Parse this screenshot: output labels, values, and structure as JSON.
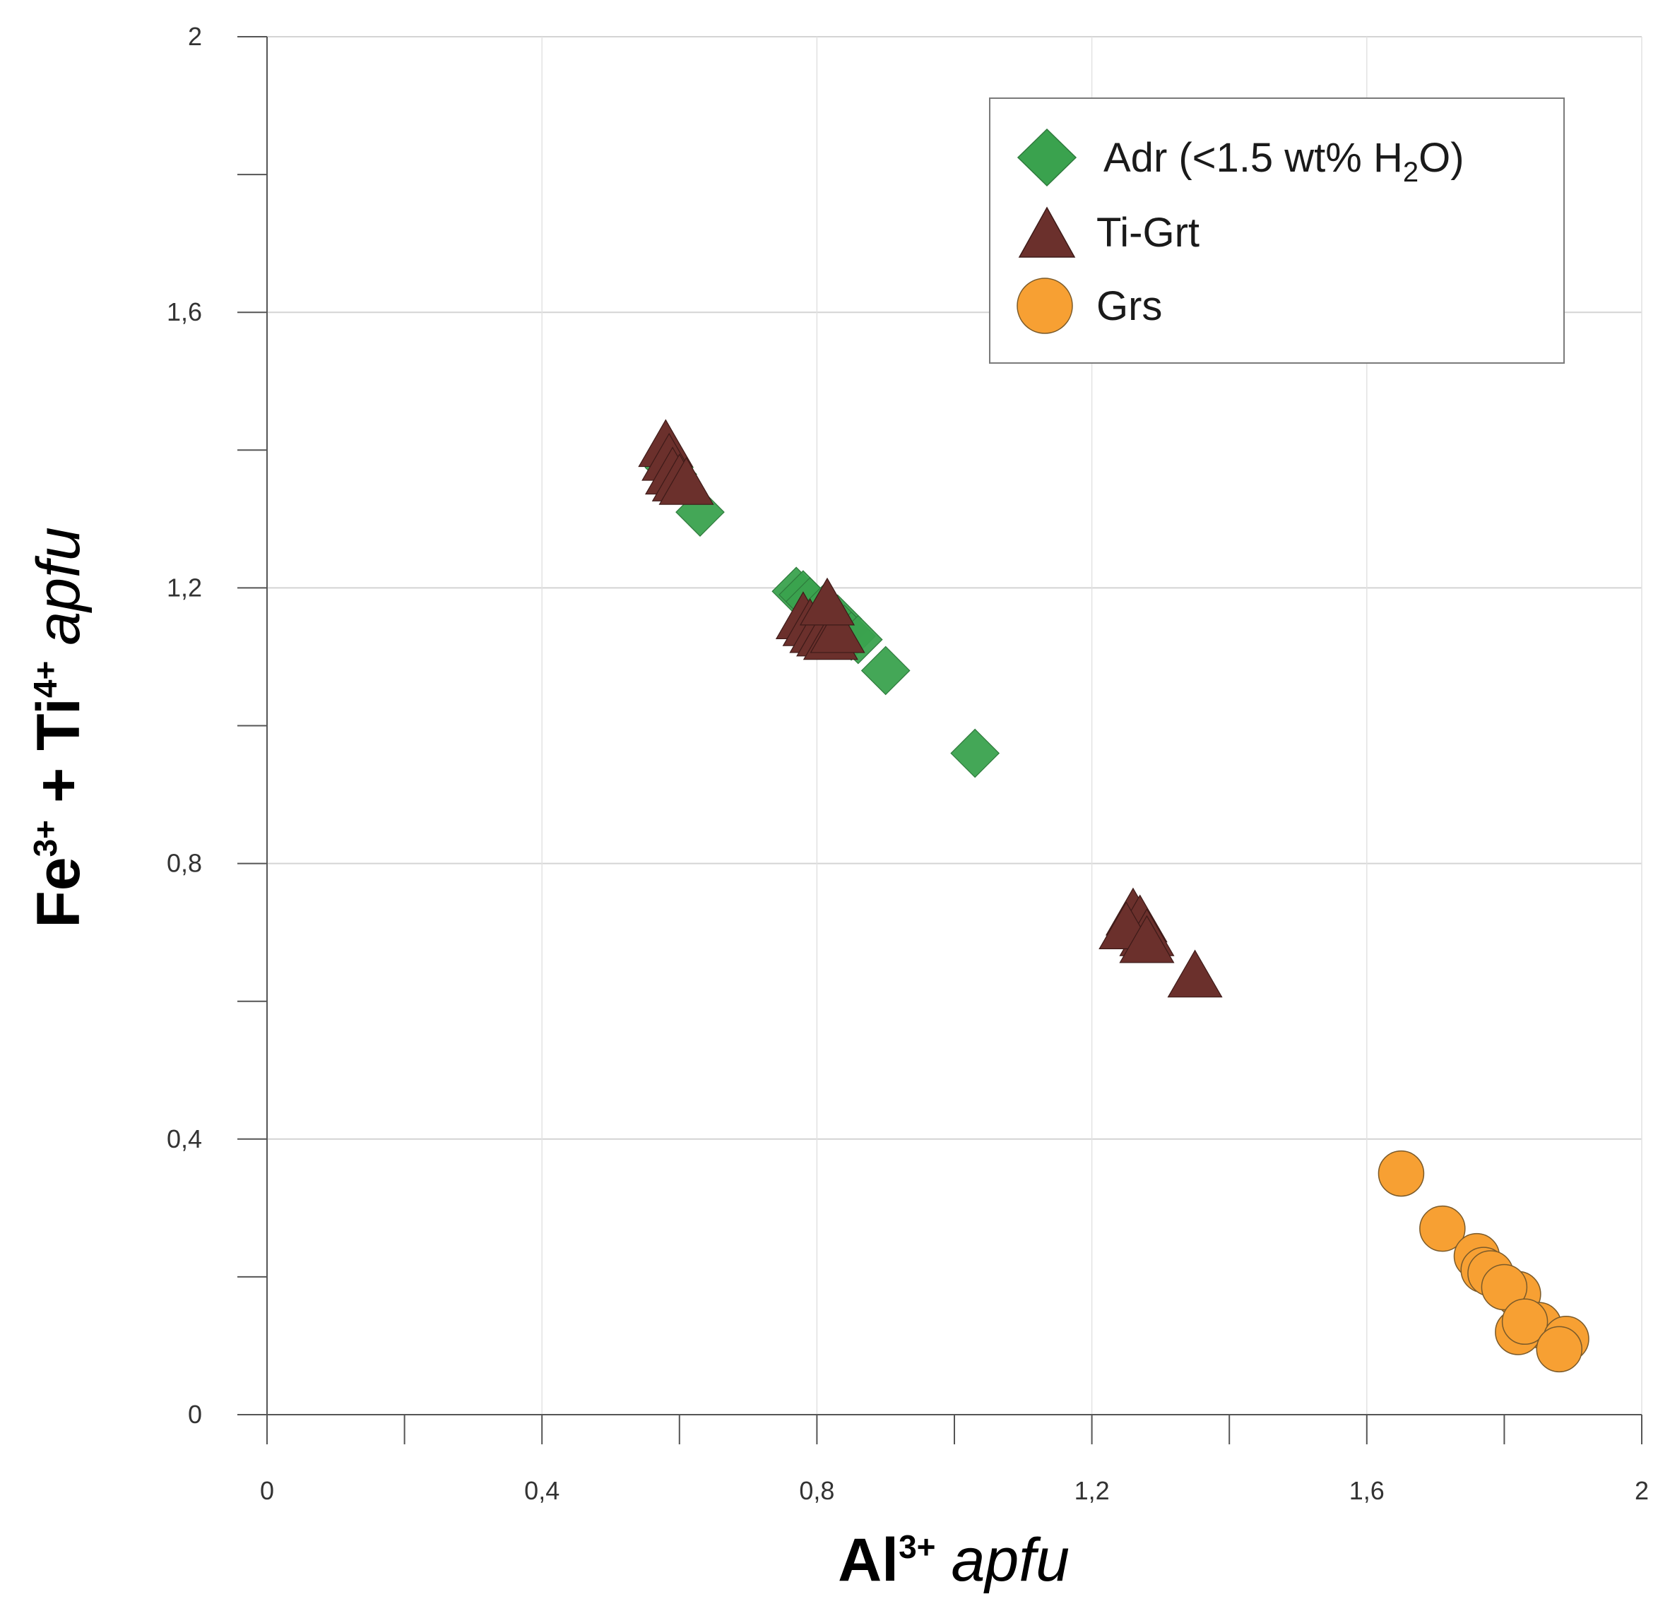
{
  "chart_data": {
    "type": "scatter",
    "xlabel": {
      "main": "Al",
      "sup": "3+",
      "unit": "apfu"
    },
    "ylabel": {
      "main": "Fe",
      "sup1": "3+",
      "plus": " + Ti",
      "sup2": "4+",
      "unit": "apfu"
    },
    "xlim": [
      0,
      2
    ],
    "ylim": [
      0,
      2
    ],
    "x_major_ticks": [
      0,
      0.4,
      0.8,
      1.2,
      1.6,
      2
    ],
    "x_tick_labels": [
      "0",
      "0,4",
      "0,8",
      "1,2",
      "1,6",
      "2"
    ],
    "x_minor_ticks": [
      0.2,
      0.6,
      1.0,
      1.4,
      1.8
    ],
    "y_major_ticks": [
      0,
      0.4,
      0.8,
      1.2,
      1.6,
      2
    ],
    "y_tick_labels": [
      "0",
      "0,4",
      "0,8",
      "1,2",
      "1,6",
      "2"
    ],
    "y_minor_ticks": [
      0.2,
      0.6,
      1.0,
      1.4,
      1.8
    ],
    "grid": true,
    "legend_position": "top-right",
    "series": [
      {
        "name": "Adr (<1.5 wt% H2O)",
        "label_main": "Adr (<1.5 wt% H",
        "label_sub": "2",
        "label_tail": "O)",
        "marker": "diamond",
        "color": "#3aa24e",
        "points": [
          [
            0.585,
            1.375
          ],
          [
            0.59,
            1.365
          ],
          [
            0.63,
            1.31
          ],
          [
            0.77,
            1.195
          ],
          [
            0.78,
            1.19
          ],
          [
            0.79,
            1.18
          ],
          [
            0.81,
            1.17
          ],
          [
            0.82,
            1.16
          ],
          [
            0.83,
            1.155
          ],
          [
            0.84,
            1.14
          ],
          [
            0.85,
            1.13
          ],
          [
            0.86,
            1.125
          ],
          [
            0.9,
            1.08
          ],
          [
            1.03,
            0.96
          ]
        ]
      },
      {
        "name": "Ti-Grt",
        "label_main": "Ti-Grt",
        "marker": "triangle",
        "color": "#6b302c",
        "points": [
          [
            0.58,
            1.41
          ],
          [
            0.585,
            1.39
          ],
          [
            0.59,
            1.37
          ],
          [
            0.6,
            1.36
          ],
          [
            0.61,
            1.355
          ],
          [
            0.78,
            1.16
          ],
          [
            0.79,
            1.15
          ],
          [
            0.8,
            1.14
          ],
          [
            0.81,
            1.135
          ],
          [
            0.82,
            1.13
          ],
          [
            0.83,
            1.14
          ],
          [
            0.815,
            1.18
          ],
          [
            1.26,
            0.73
          ],
          [
            1.27,
            0.72
          ],
          [
            1.28,
            0.7
          ],
          [
            1.25,
            0.71
          ],
          [
            1.28,
            0.69
          ],
          [
            1.35,
            0.64
          ]
        ]
      },
      {
        "name": "Grs",
        "label_main": "Grs",
        "marker": "circle",
        "color": "#f7a033",
        "points": [
          [
            1.65,
            0.35
          ],
          [
            1.71,
            0.27
          ],
          [
            1.76,
            0.23
          ],
          [
            1.77,
            0.21
          ],
          [
            1.78,
            0.205
          ],
          [
            1.82,
            0.175
          ],
          [
            1.8,
            0.185
          ],
          [
            1.85,
            0.13
          ],
          [
            1.82,
            0.12
          ],
          [
            1.83,
            0.135
          ],
          [
            1.89,
            0.11
          ],
          [
            1.88,
            0.095
          ]
        ]
      }
    ]
  }
}
